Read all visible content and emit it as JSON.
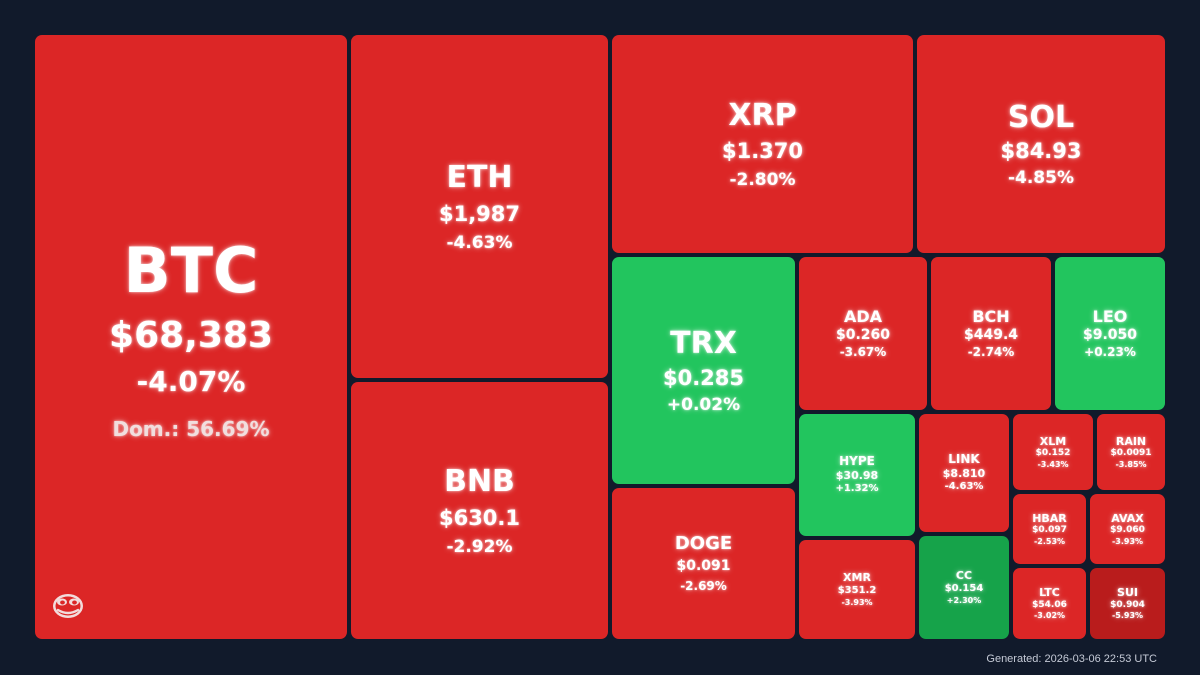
{
  "chart_data": {
    "type": "treemap",
    "colors": {
      "down": "#dc2626",
      "up": "#22c55e",
      "up_strong": "#16a34a",
      "down_strong": "#b91c1c"
    },
    "items": [
      {
        "symbol": "BTC",
        "price": "$68,383",
        "change": "-4.07%",
        "change_value": -4.07,
        "dominance": "Dom.: 56.69%"
      },
      {
        "symbol": "ETH",
        "price": "$1,987",
        "change": "-4.63%",
        "change_value": -4.63
      },
      {
        "symbol": "BNB",
        "price": "$630.1",
        "change": "-2.92%",
        "change_value": -2.92
      },
      {
        "symbol": "XRP",
        "price": "$1.370",
        "change": "-2.80%",
        "change_value": -2.8
      },
      {
        "symbol": "SOL",
        "price": "$84.93",
        "change": "-4.85%",
        "change_value": -4.85
      },
      {
        "symbol": "TRX",
        "price": "$0.285",
        "change": "+0.02%",
        "change_value": 0.02
      },
      {
        "symbol": "DOGE",
        "price": "$0.091",
        "change": "-2.69%",
        "change_value": -2.69
      },
      {
        "symbol": "ADA",
        "price": "$0.260",
        "change": "-3.67%",
        "change_value": -3.67
      },
      {
        "symbol": "BCH",
        "price": "$449.4",
        "change": "-2.74%",
        "change_value": -2.74
      },
      {
        "symbol": "LEO",
        "price": "$9.050",
        "change": "+0.23%",
        "change_value": 0.23
      },
      {
        "symbol": "HYPE",
        "price": "$30.98",
        "change": "+1.32%",
        "change_value": 1.32
      },
      {
        "symbol": "LINK",
        "price": "$8.810",
        "change": "-4.63%",
        "change_value": -4.63
      },
      {
        "symbol": "XLM",
        "price": "$0.152",
        "change": "-3.43%",
        "change_value": -3.43
      },
      {
        "symbol": "RAIN",
        "price": "$0.0091",
        "change": "-3.85%",
        "change_value": -3.85
      },
      {
        "symbol": "HBAR",
        "price": "$0.097",
        "change": "-2.53%",
        "change_value": -2.53
      },
      {
        "symbol": "AVAX",
        "price": "$9.060",
        "change": "-3.93%",
        "change_value": -3.93
      },
      {
        "symbol": "XMR",
        "price": "$351.2",
        "change": "-3.93%",
        "change_value": -3.93
      },
      {
        "symbol": "CC",
        "price": "$0.154",
        "change": "+2.30%",
        "change_value": 2.3
      },
      {
        "symbol": "LTC",
        "price": "$54.06",
        "change": "-3.02%",
        "change_value": -3.02
      },
      {
        "symbol": "SUI",
        "price": "$0.904",
        "change": "-5.93%",
        "change_value": -5.93
      }
    ]
  },
  "logo": {
    "icon": "pepe-face-icon"
  },
  "footer": {
    "generated": "Generated: 2026-03-06 22:53 UTC"
  }
}
